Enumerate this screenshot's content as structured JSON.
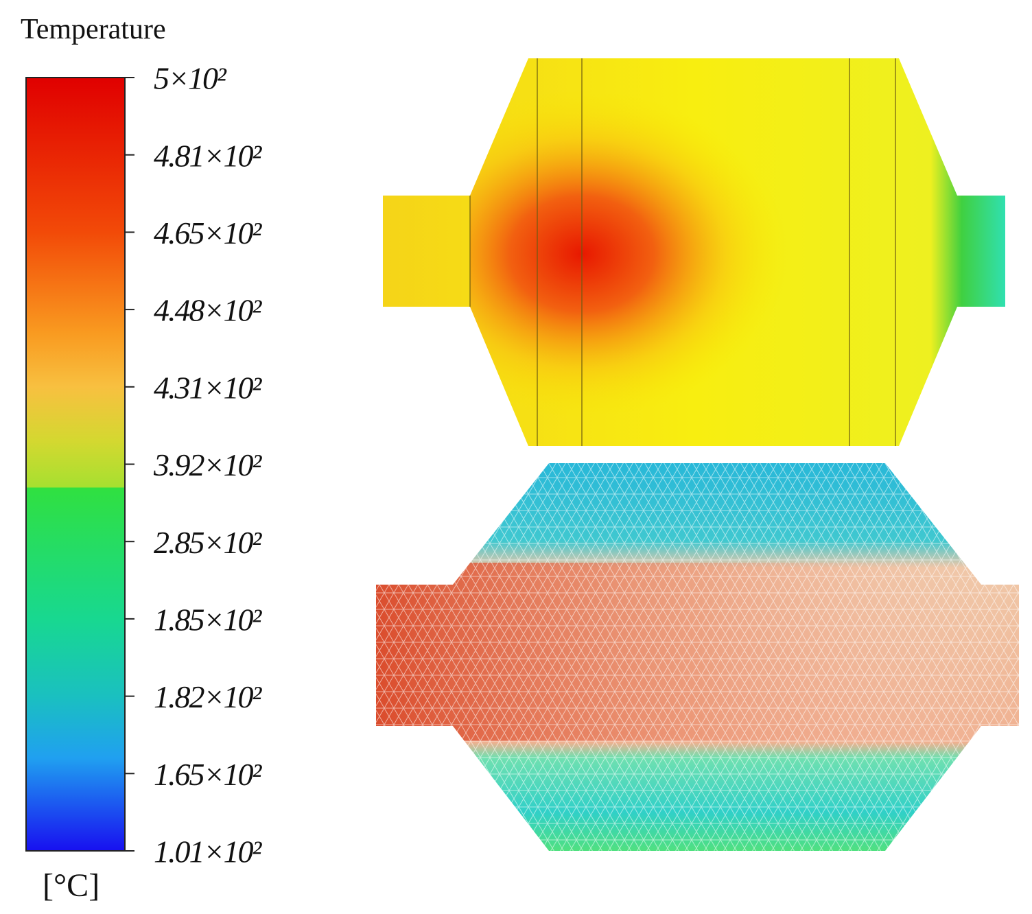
{
  "legend": {
    "title": "Temperature",
    "unit": "[°C]",
    "ticks": [
      "5×10²",
      "4.81×10²",
      "4.65×10²",
      "4.48×10²",
      "4.31×10²",
      "3.92×10²",
      "2.85×10²",
      "1.85×10²",
      "1.82×10²",
      "1.65×10²",
      "1.01×10²"
    ]
  }
}
